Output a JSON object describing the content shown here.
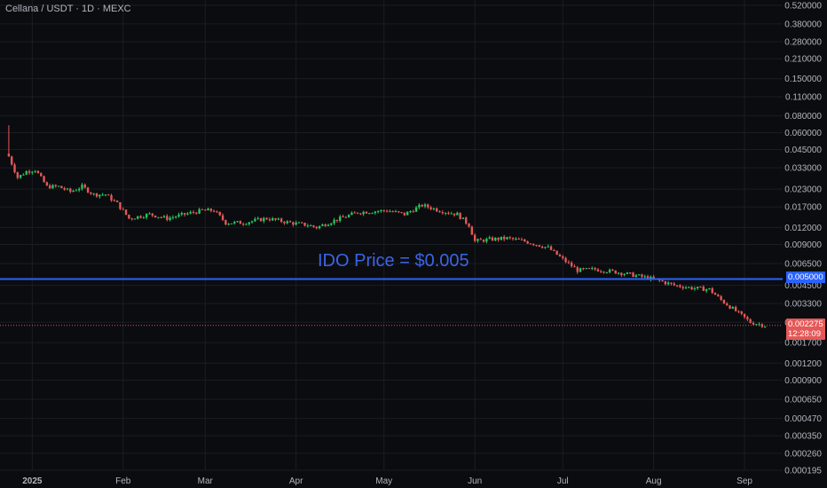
{
  "header": {
    "title": "Cellana / USDT · 1D · MEXC"
  },
  "annotation": {
    "text": "IDO Price = $0.005"
  },
  "price_badges": {
    "ido_level": "0.005000",
    "last_price": "0.002275",
    "countdown": "12:28:09"
  },
  "colors": {
    "background": "#0b0c0f",
    "up": "#26c45e",
    "down": "#e45858",
    "ido_line": "#2962ff",
    "grid": "#1b1d24"
  },
  "chart_data": {
    "type": "candlestick",
    "y_scale": "log",
    "ylim": [
      0.000195,
      0.52
    ],
    "xlim": [
      "2024-12-21",
      "2025-09-14"
    ],
    "grid": true,
    "y_tick_labels": [
      "0.520000",
      "0.380000",
      "0.280000",
      "0.210000",
      "0.150000",
      "0.110000",
      "0.080000",
      "0.060000",
      "0.045000",
      "0.033000",
      "0.023000",
      "0.017000",
      "0.012000",
      "0.009000",
      "0.006500",
      "0.004500",
      "0.003300",
      "0.002400",
      "0.001700",
      "0.001200",
      "0.000900",
      "0.000650",
      "0.000470",
      "0.000350",
      "0.000260",
      "0.000195"
    ],
    "x_tick_labels": [
      {
        "date": "2025-01-01",
        "label": "2025"
      },
      {
        "date": "2025-02-01",
        "label": "Feb"
      },
      {
        "date": "2025-03-01",
        "label": "Mar"
      },
      {
        "date": "2025-04-01",
        "label": "Apr"
      },
      {
        "date": "2025-05-01",
        "label": "May"
      },
      {
        "date": "2025-06-01",
        "label": "Jun"
      },
      {
        "date": "2025-07-01",
        "label": "Jul"
      },
      {
        "date": "2025-08-01",
        "label": "Aug"
      },
      {
        "date": "2025-09-01",
        "label": "Sep"
      }
    ],
    "horizontal_line": {
      "value": 0.005,
      "label": "IDO Price = $0.005"
    },
    "last_price": 0.002275,
    "start_date": "2024-12-24",
    "close_path": [
      {
        "date": "2024-12-24",
        "value": 0.04,
        "high": 0.068
      },
      {
        "date": "2024-12-27",
        "value": 0.028
      },
      {
        "date": "2024-12-30",
        "value": 0.031
      },
      {
        "date": "2025-01-02",
        "value": 0.032
      },
      {
        "date": "2025-01-06",
        "value": 0.024
      },
      {
        "date": "2025-01-10",
        "value": 0.024
      },
      {
        "date": "2025-01-14",
        "value": 0.022
      },
      {
        "date": "2025-01-18",
        "value": 0.024
      },
      {
        "date": "2025-01-22",
        "value": 0.021
      },
      {
        "date": "2025-01-26",
        "value": 0.021
      },
      {
        "date": "2025-01-30",
        "value": 0.018
      },
      {
        "date": "2025-02-03",
        "value": 0.014
      },
      {
        "date": "2025-02-10",
        "value": 0.015
      },
      {
        "date": "2025-02-16",
        "value": 0.014
      },
      {
        "date": "2025-02-22",
        "value": 0.015
      },
      {
        "date": "2025-02-28",
        "value": 0.016
      },
      {
        "date": "2025-03-04",
        "value": 0.016
      },
      {
        "date": "2025-03-08",
        "value": 0.013
      },
      {
        "date": "2025-03-14",
        "value": 0.013
      },
      {
        "date": "2025-03-22",
        "value": 0.014
      },
      {
        "date": "2025-03-30",
        "value": 0.013
      },
      {
        "date": "2025-04-05",
        "value": 0.0125
      },
      {
        "date": "2025-04-08",
        "value": 0.012
      },
      {
        "date": "2025-04-14",
        "value": 0.0135
      },
      {
        "date": "2025-04-22",
        "value": 0.0155
      },
      {
        "date": "2025-05-02",
        "value": 0.016
      },
      {
        "date": "2025-05-08",
        "value": 0.015
      },
      {
        "date": "2025-05-14",
        "value": 0.0175
      },
      {
        "date": "2025-05-20",
        "value": 0.016
      },
      {
        "date": "2025-05-26",
        "value": 0.015
      },
      {
        "date": "2025-05-30",
        "value": 0.0125
      },
      {
        "date": "2025-06-01",
        "value": 0.0095
      },
      {
        "date": "2025-06-06",
        "value": 0.0098
      },
      {
        "date": "2025-06-12",
        "value": 0.01
      },
      {
        "date": "2025-06-18",
        "value": 0.0095
      },
      {
        "date": "2025-06-26",
        "value": 0.0085
      },
      {
        "date": "2025-07-01",
        "value": 0.007
      },
      {
        "date": "2025-07-06",
        "value": 0.0058
      },
      {
        "date": "2025-07-12",
        "value": 0.0059
      },
      {
        "date": "2025-07-20",
        "value": 0.0056
      },
      {
        "date": "2025-07-26",
        "value": 0.0053
      },
      {
        "date": "2025-08-01",
        "value": 0.005
      },
      {
        "date": "2025-08-08",
        "value": 0.0045
      },
      {
        "date": "2025-08-14",
        "value": 0.0043
      },
      {
        "date": "2025-08-20",
        "value": 0.0042
      },
      {
        "date": "2025-08-24",
        "value": 0.0035
      },
      {
        "date": "2025-08-30",
        "value": 0.0028
      },
      {
        "date": "2025-09-03",
        "value": 0.0024
      },
      {
        "date": "2025-09-08",
        "value": 0.002275
      }
    ]
  }
}
